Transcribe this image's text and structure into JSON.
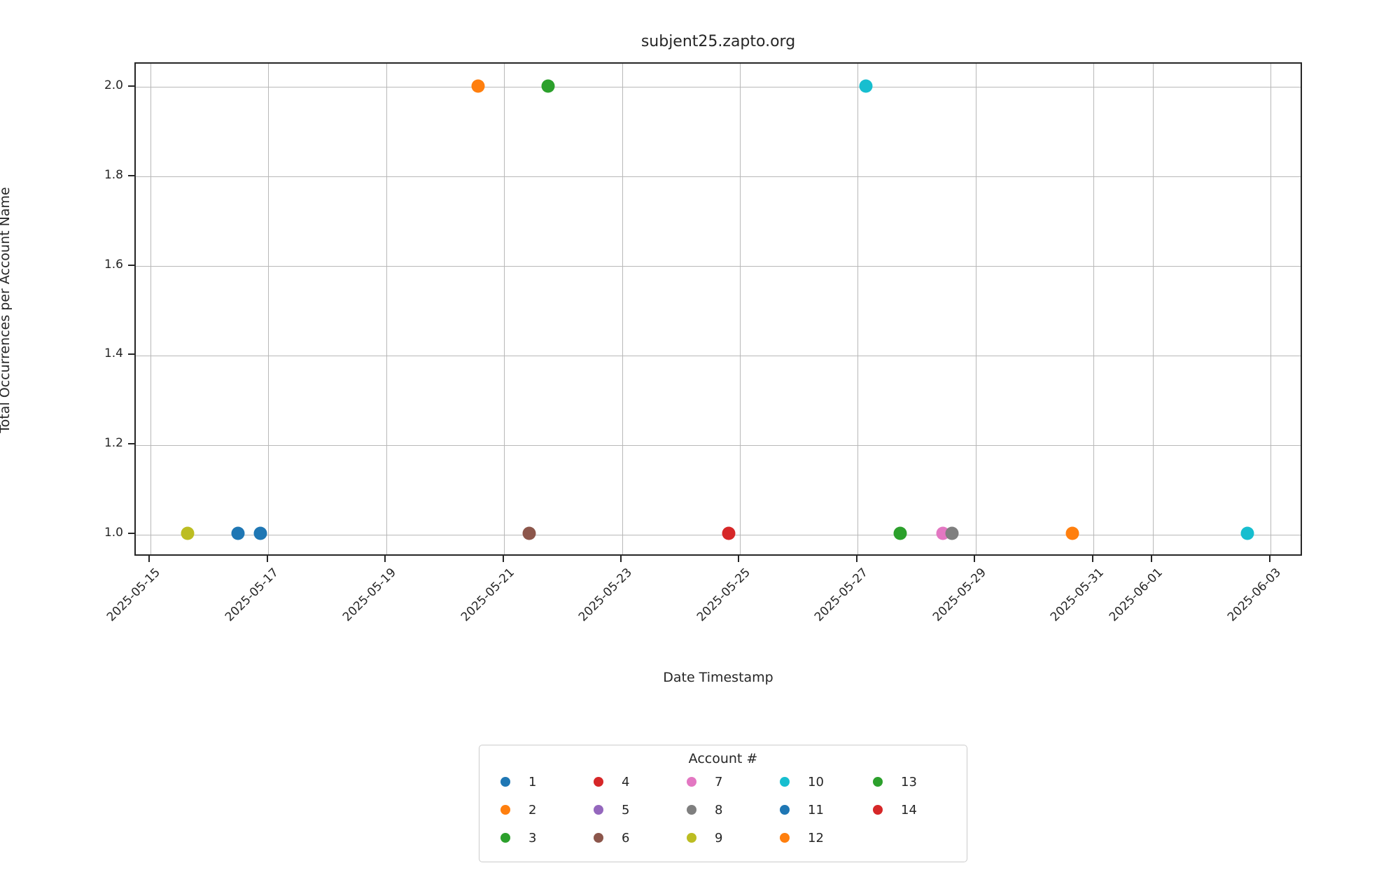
{
  "title": "subjent25.zapto.org",
  "x_axis_label": "Date Timestamp",
  "y_axis_label": "Total Occurrences per Account Name",
  "legend": {
    "title": "Account #",
    "entries": [
      {
        "label": "1",
        "color": "#1f77b4"
      },
      {
        "label": "2",
        "color": "#ff7f0e"
      },
      {
        "label": "3",
        "color": "#2ca02c"
      },
      {
        "label": "4",
        "color": "#d62728"
      },
      {
        "label": "5",
        "color": "#9467bd"
      },
      {
        "label": "6",
        "color": "#8c564b"
      },
      {
        "label": "7",
        "color": "#e377c2"
      },
      {
        "label": "8",
        "color": "#7f7f7f"
      },
      {
        "label": "9",
        "color": "#bcbd22"
      },
      {
        "label": "10",
        "color": "#17becf"
      },
      {
        "label": "11",
        "color": "#1f77b4"
      },
      {
        "label": "12",
        "color": "#ff7f0e"
      },
      {
        "label": "13",
        "color": "#2ca02c"
      },
      {
        "label": "14",
        "color": "#d62728"
      }
    ],
    "rows_per_column": 3
  },
  "chart_data": {
    "type": "scatter",
    "title": "subjent25.zapto.org",
    "xlabel": "Date Timestamp",
    "ylabel": "Total Occurrences per Account Name",
    "grid": true,
    "legend_position": "below-center",
    "x_range_days": [
      -0.25,
      19.55
    ],
    "y_range": [
      0.95,
      2.053
    ],
    "x_ticks": [
      {
        "label": "2025-05-15",
        "day": 0
      },
      {
        "label": "2025-05-17",
        "day": 2
      },
      {
        "label": "2025-05-19",
        "day": 4
      },
      {
        "label": "2025-05-21",
        "day": 6
      },
      {
        "label": "2025-05-23",
        "day": 8
      },
      {
        "label": "2025-05-25",
        "day": 10
      },
      {
        "label": "2025-05-27",
        "day": 12
      },
      {
        "label": "2025-05-29",
        "day": 14
      },
      {
        "label": "2025-05-31",
        "day": 16
      },
      {
        "label": "2025-06-01",
        "day": 17
      },
      {
        "label": "2025-06-03",
        "day": 19
      }
    ],
    "y_ticks": [
      {
        "label": "1.0",
        "value": 1.0
      },
      {
        "label": "1.2",
        "value": 1.2
      },
      {
        "label": "1.4",
        "value": 1.4
      },
      {
        "label": "1.6",
        "value": 1.6
      },
      {
        "label": "1.8",
        "value": 1.8
      },
      {
        "label": "2.0",
        "value": 2.0
      }
    ],
    "points": [
      {
        "account": "9",
        "date": "2025-05-15",
        "day": 0.65,
        "value": 1.0,
        "color": "#bcbd22"
      },
      {
        "account": "1",
        "date": "2025-05-16",
        "day": 1.51,
        "value": 1.0,
        "color": "#1f77b4"
      },
      {
        "account": "11",
        "date": "2025-05-16",
        "day": 1.89,
        "value": 1.0,
        "color": "#1f77b4"
      },
      {
        "account": "2",
        "date": "2025-05-20",
        "day": 5.58,
        "value": 2.0,
        "color": "#ff7f0e"
      },
      {
        "account": "6",
        "date": "2025-05-21",
        "day": 6.44,
        "value": 1.0,
        "color": "#8c564b"
      },
      {
        "account": "3",
        "date": "2025-05-21",
        "day": 6.76,
        "value": 2.0,
        "color": "#2ca02c"
      },
      {
        "account": "4",
        "date": "2025-05-24",
        "day": 9.83,
        "value": 1.0,
        "color": "#d62728"
      },
      {
        "account": "10",
        "date": "2025-05-27",
        "day": 12.16,
        "value": 2.0,
        "color": "#17becf"
      },
      {
        "account": "13",
        "date": "2025-05-27",
        "day": 12.74,
        "value": 1.0,
        "color": "#2ca02c"
      },
      {
        "account": "7",
        "date": "2025-05-28",
        "day": 13.46,
        "value": 1.0,
        "color": "#e377c2"
      },
      {
        "account": "8",
        "date": "2025-05-28",
        "day": 13.61,
        "value": 1.0,
        "color": "#7f7f7f"
      },
      {
        "account": "12",
        "date": "2025-05-30",
        "day": 15.66,
        "value": 1.0,
        "color": "#ff7f0e"
      },
      {
        "account": "10",
        "date": "2025-06-02",
        "day": 18.62,
        "value": 1.0,
        "color": "#17becf"
      }
    ]
  }
}
